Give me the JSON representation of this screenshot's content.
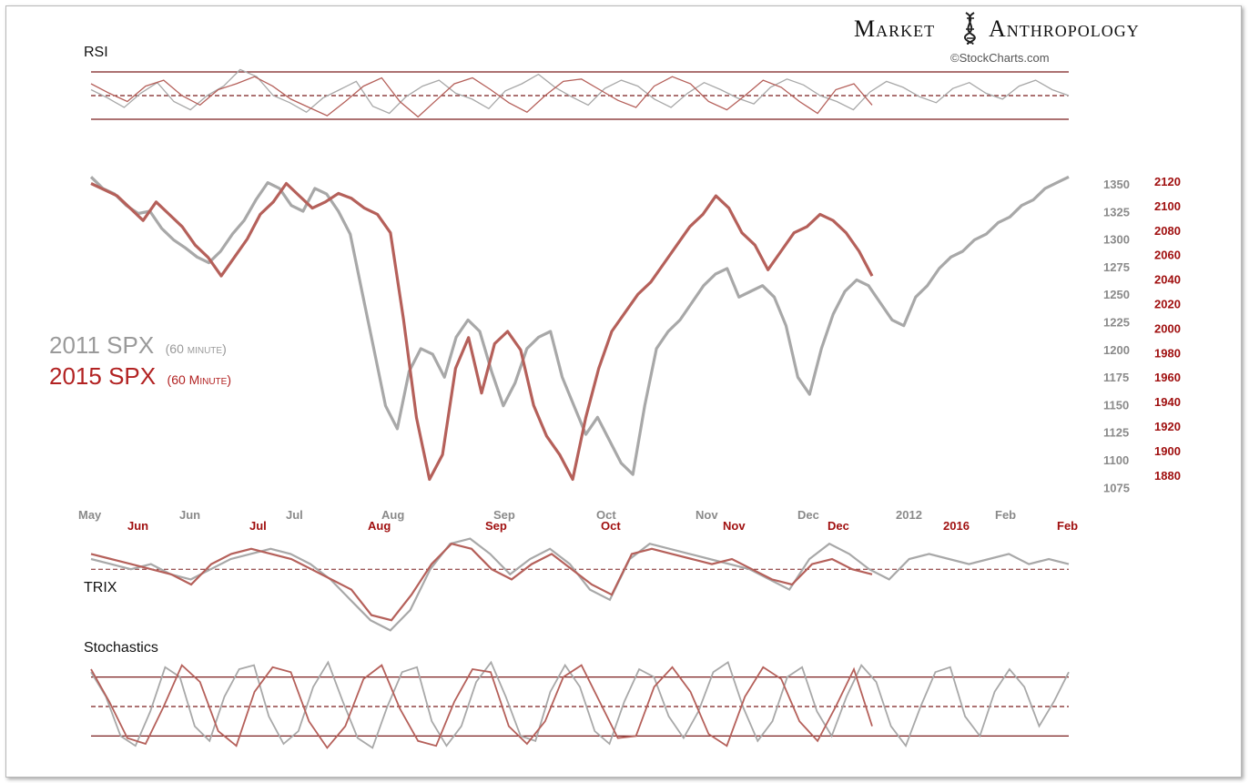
{
  "brand": {
    "left": "Market",
    "right": "Anthropology",
    "logo_icon": "dna-helix-icon"
  },
  "credit": "©StockCharts.com",
  "legend": {
    "gray_main": "2011 SPX",
    "gray_sub": "(60 minute)",
    "red_main": "2015 SPX",
    "red_sub": "(60 Minute)"
  },
  "colors": {
    "series_2011": "#a8a8a8",
    "series_2015": "#b5605a",
    "overlap": "#5a0f0f",
    "bands": "#7a1f1f"
  },
  "chart_data": [
    {
      "type": "line",
      "name": "rsi-panel",
      "title": "RSI",
      "bands": [
        70,
        50,
        30
      ],
      "ylim": [
        20,
        80
      ],
      "series": [
        {
          "name": "2011 SPX",
          "values": [
            55,
            48,
            40,
            52,
            61,
            45,
            38,
            50,
            58,
            72,
            66,
            50,
            44,
            36,
            48,
            55,
            62,
            41,
            35,
            49,
            58,
            63,
            52,
            47,
            39,
            54,
            60,
            68,
            57,
            49,
            42,
            56,
            63,
            58,
            47,
            40,
            52,
            61,
            55,
            48,
            43,
            57,
            64,
            59,
            50,
            45,
            38,
            53,
            62,
            57,
            49,
            44,
            56,
            61,
            52,
            47,
            58,
            63,
            55,
            50
          ]
        },
        {
          "name": "2015 SPX",
          "values": [
            60,
            52,
            45,
            58,
            63,
            50,
            42,
            55,
            60,
            66,
            58,
            47,
            40,
            33,
            45,
            58,
            65,
            45,
            32,
            46,
            60,
            65,
            55,
            44,
            36,
            50,
            62,
            64,
            55,
            46,
            40,
            58,
            66,
            60,
            45,
            38,
            50,
            63,
            57,
            45,
            35,
            55,
            60,
            42
          ]
        }
      ]
    },
    {
      "type": "line",
      "name": "price-panel",
      "series": [
        {
          "name": "2011 SPX",
          "y_axis": "left",
          "values": [
            1350,
            1340,
            1335,
            1325,
            1318,
            1320,
            1305,
            1295,
            1288,
            1280,
            1275,
            1285,
            1300,
            1312,
            1330,
            1345,
            1340,
            1325,
            1320,
            1340,
            1335,
            1320,
            1300,
            1250,
            1200,
            1150,
            1130,
            1180,
            1200,
            1195,
            1175,
            1210,
            1225,
            1215,
            1180,
            1150,
            1170,
            1200,
            1210,
            1215,
            1175,
            1150,
            1125,
            1140,
            1120,
            1100,
            1090,
            1150,
            1200,
            1215,
            1225,
            1240,
            1255,
            1265,
            1270,
            1245,
            1250,
            1255,
            1245,
            1220,
            1175,
            1160,
            1200,
            1230,
            1250,
            1260,
            1255,
            1240,
            1225,
            1220,
            1245,
            1255,
            1270,
            1280,
            1285,
            1295,
            1300,
            1310,
            1315,
            1325,
            1330,
            1340,
            1345,
            1350
          ]
        },
        {
          "name": "2015 SPX",
          "y_axis": "right",
          "values": [
            2120,
            2115,
            2110,
            2100,
            2090,
            2105,
            2095,
            2085,
            2070,
            2060,
            2045,
            2060,
            2075,
            2095,
            2105,
            2120,
            2110,
            2100,
            2105,
            2112,
            2108,
            2100,
            2095,
            2080,
            2010,
            1930,
            1880,
            1900,
            1970,
            1995,
            1950,
            1990,
            2000,
            1985,
            1940,
            1915,
            1900,
            1880,
            1930,
            1970,
            2000,
            2015,
            2030,
            2040,
            2055,
            2070,
            2085,
            2095,
            2110,
            2100,
            2080,
            2070,
            2050,
            2065,
            2080,
            2085,
            2095,
            2090,
            2080,
            2065,
            2045
          ]
        }
      ],
      "y_left_ticks": [
        "1350",
        "1325",
        "1300",
        "1275",
        "1250",
        "1225",
        "1200",
        "1175",
        "1150",
        "1125",
        "1100",
        "1075"
      ],
      "y_right_ticks": [
        "2120",
        "2100",
        "2080",
        "2060",
        "2040",
        "2020",
        "2000",
        "1980",
        "1960",
        "1940",
        "1920",
        "1900",
        "1880"
      ],
      "x_ticks_2011": [
        "May",
        "Jun",
        "Jul",
        "Aug",
        "Sep",
        "Oct",
        "Nov",
        "Dec",
        "2012",
        "Feb"
      ],
      "x_ticks_2015": [
        "Jun",
        "Jul",
        "Aug",
        "Sep",
        "Oct",
        "Nov",
        "Dec",
        "2016",
        "Feb"
      ]
    },
    {
      "type": "line",
      "name": "trix-panel",
      "title": "TRIX",
      "series": [
        {
          "name": "2011 SPX",
          "values": [
            0.02,
            0.01,
            0.0,
            0.01,
            -0.01,
            -0.02,
            0.0,
            0.02,
            0.03,
            0.04,
            0.03,
            0.01,
            -0.02,
            -0.06,
            -0.1,
            -0.12,
            -0.08,
            0.0,
            0.05,
            0.06,
            0.03,
            -0.01,
            0.02,
            0.04,
            0.01,
            -0.04,
            -0.06,
            0.02,
            0.05,
            0.04,
            0.03,
            0.02,
            0.01,
            0.0,
            -0.02,
            -0.04,
            0.02,
            0.05,
            0.03,
            0.0,
            -0.02,
            0.02,
            0.03,
            0.02,
            0.01,
            0.02,
            0.03,
            0.01,
            0.02,
            0.01
          ]
        },
        {
          "name": "2015 SPX",
          "values": [
            0.03,
            0.02,
            0.01,
            0.0,
            -0.01,
            -0.03,
            0.01,
            0.03,
            0.04,
            0.03,
            0.02,
            0.0,
            -0.02,
            -0.04,
            -0.09,
            -0.1,
            -0.05,
            0.01,
            0.05,
            0.04,
            0.0,
            -0.02,
            0.01,
            0.03,
            0.0,
            -0.03,
            -0.05,
            0.03,
            0.04,
            0.03,
            0.02,
            0.01,
            0.02,
            0.0,
            -0.02,
            -0.03,
            0.01,
            0.02,
            0.0,
            -0.01
          ]
        }
      ]
    },
    {
      "type": "line",
      "name": "stochastics-panel",
      "title": "Stochastics",
      "bands": [
        80,
        50,
        20
      ],
      "ylim": [
        0,
        100
      ],
      "series": [
        {
          "name": "2011 SPX",
          "values": [
            85,
            60,
            20,
            10,
            45,
            90,
            80,
            30,
            15,
            60,
            88,
            92,
            40,
            12,
            25,
            70,
            95,
            55,
            18,
            8,
            50,
            85,
            90,
            35,
            10,
            30,
            75,
            95,
            60,
            20,
            15,
            65,
            92,
            70,
            25,
            12,
            55,
            88,
            80,
            40,
            18,
            45,
            85,
            95,
            50,
            15,
            35,
            80,
            90,
            45,
            20,
            60,
            92,
            75,
            30,
            10,
            50,
            85,
            90,
            40,
            20,
            65,
            88,
            70,
            30,
            55,
            85
          ]
        },
        {
          "name": "2015 SPX",
          "values": [
            88,
            55,
            18,
            12,
            50,
            92,
            75,
            25,
            10,
            65,
            90,
            85,
            35,
            8,
            30,
            78,
            92,
            48,
            15,
            10,
            55,
            88,
            85,
            30,
            12,
            35,
            80,
            92,
            55,
            18,
            20,
            70,
            90,
            65,
            22,
            10,
            60,
            90,
            78,
            35,
            15,
            50,
            88,
            30
          ]
        }
      ]
    }
  ]
}
